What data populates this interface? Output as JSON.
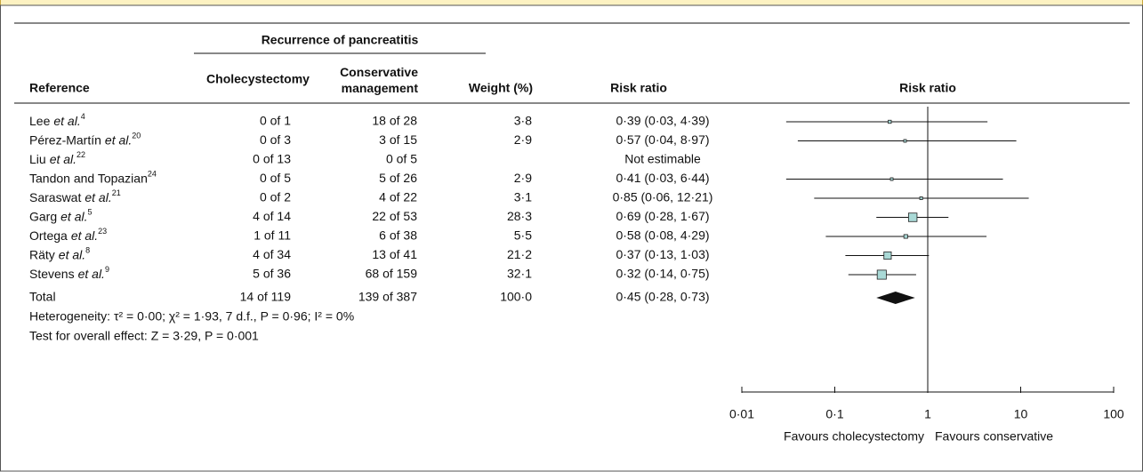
{
  "chart_data": {
    "type": "forest",
    "group_header": "Recurrence of pancreatitis",
    "columns": {
      "reference": "Reference",
      "treatment": "Cholecystectomy",
      "control": "Conservative management",
      "weight": "Weight (%)",
      "effect": "Risk ratio",
      "plot": "Risk ratio"
    },
    "rows": [
      {
        "author": "Lee",
        "etal": "et al.",
        "sup": "4",
        "treatment": "0 of 1",
        "control": "18 of 28",
        "weight": 3.8,
        "weight_label": "3·8",
        "rr": 0.39,
        "ci": [
          0.03,
          4.39
        ],
        "rr_label": "0·39 (0·03, 4·39)"
      },
      {
        "author": "Pérez-Martín",
        "etal": "et al.",
        "sup": "20",
        "treatment": "0 of 3",
        "control": "3 of 15",
        "weight": 2.9,
        "weight_label": "2·9",
        "rr": 0.57,
        "ci": [
          0.04,
          8.97
        ],
        "rr_label": "0·57 (0·04, 8·97)"
      },
      {
        "author": "Liu",
        "etal": "et al.",
        "sup": "22",
        "treatment": "0 of 13",
        "control": "0 of 5",
        "weight": null,
        "weight_label": null,
        "rr": null,
        "ci": null,
        "rr_label": "Not estimable"
      },
      {
        "author": "Tandon and Topazian",
        "etal": null,
        "sup": "24",
        "treatment": "0 of 5",
        "control": "5 of 26",
        "weight": 2.9,
        "weight_label": "2·9",
        "rr": 0.41,
        "ci": [
          0.03,
          6.44
        ],
        "rr_label": "0·41 (0·03, 6·44)"
      },
      {
        "author": "Saraswat",
        "etal": "et al.",
        "sup": "21",
        "treatment": "0 of 2",
        "control": "4 of 22",
        "weight": 3.1,
        "weight_label": "3·1",
        "rr": 0.85,
        "ci": [
          0.06,
          12.21
        ],
        "rr_label": "0·85 (0·06, 12·21)"
      },
      {
        "author": "Garg",
        "etal": "et al.",
        "sup": "5",
        "treatment": "4 of 14",
        "control": "22 of 53",
        "weight": 28.3,
        "weight_label": "28·3",
        "rr": 0.69,
        "ci": [
          0.28,
          1.67
        ],
        "rr_label": "0·69 (0·28, 1·67)"
      },
      {
        "author": "Ortega",
        "etal": "et al.",
        "sup": "23",
        "treatment": "1 of 11",
        "control": "6 of 38",
        "weight": 5.5,
        "weight_label": "5·5",
        "rr": 0.58,
        "ci": [
          0.08,
          4.29
        ],
        "rr_label": "0·58 (0·08, 4·29)"
      },
      {
        "author": "Räty",
        "etal": "et al.",
        "sup": "8",
        "treatment": "4 of 34",
        "control": "13 of 41",
        "weight": 21.2,
        "weight_label": "21·2",
        "rr": 0.37,
        "ci": [
          0.13,
          1.03
        ],
        "rr_label": "0·37 (0·13, 1·03)"
      },
      {
        "author": "Stevens",
        "etal": "et al.",
        "sup": "9",
        "treatment": "5 of 36",
        "control": "68 of 159",
        "weight": 32.1,
        "weight_label": "32·1",
        "rr": 0.32,
        "ci": [
          0.14,
          0.75
        ],
        "rr_label": "0·32 (0·14, 0·75)"
      }
    ],
    "total": {
      "label": "Total",
      "treatment": "14 of 119",
      "control": "139 of 387",
      "weight": 100.0,
      "weight_label": "100·0",
      "rr": 0.45,
      "ci": [
        0.28,
        0.73
      ],
      "rr_label": "0·45 (0·28, 0·73)"
    },
    "heterogeneity": "Heterogeneity: τ² = 0·00; χ² = 1·93, 7 d.f., P = 0·96; I² = 0%",
    "overall_effect": "Test for overall effect: Z = 3·29, P = 0·001",
    "x_log": true,
    "xlim": [
      0.01,
      100
    ],
    "xticks": [
      {
        "value": 0.01,
        "label": "0·01"
      },
      {
        "value": 0.1,
        "label": "0·1"
      },
      1,
      10,
      100
    ],
    "favours_left": "Favours cholecystectomy",
    "favours_right": "Favours conservative",
    "square_color": "#a9d9d6"
  }
}
